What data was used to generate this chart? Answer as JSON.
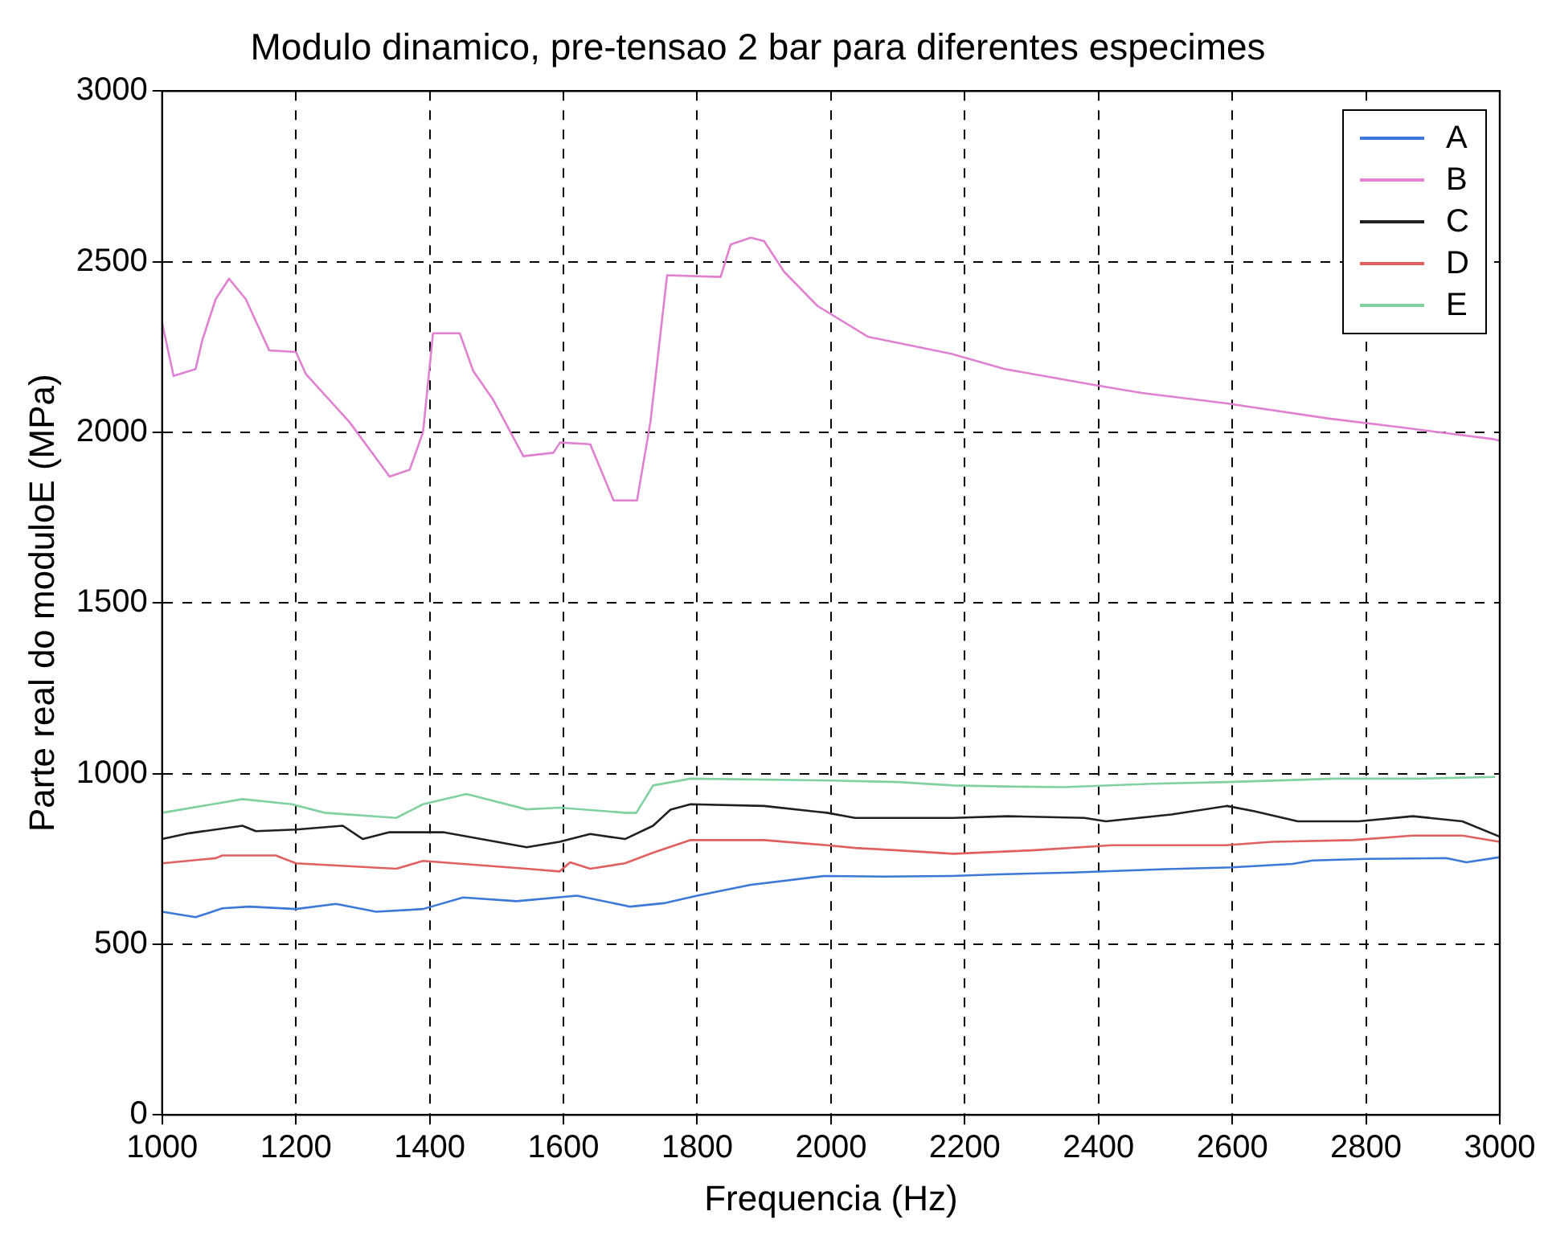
{
  "chart_data": {
    "type": "line",
    "title": "Modulo dinamico, pre-tensao 2 bar para diferentes especimes",
    "xlabel": "Frequencia (Hz)",
    "ylabel": "Parte real do moduloE (MPa)",
    "xlim": [
      1000,
      3000
    ],
    "xticks": [
      1000,
      1200,
      1400,
      1600,
      1800,
      2000,
      2200,
      2400,
      2600,
      2800,
      3000
    ],
    "ylim": [
      0,
      3000
    ],
    "yticks": [
      0,
      500,
      1000,
      1500,
      2000,
      2500,
      3000
    ],
    "grid": true,
    "legend": "top right",
    "marker": "none",
    "line_style": "solid",
    "series": [
      {
        "name": "A",
        "color": "#3c78d8",
        "x": [
          1000,
          1050,
          1090,
          1130,
          1200,
          1260,
          1320,
          1390,
          1450,
          1530,
          1620,
          1700,
          1750,
          1800,
          1880,
          1990,
          2080,
          2180,
          2260,
          2360,
          2500,
          2600,
          2690,
          2720,
          2800,
          2920,
          2950,
          3000
        ],
        "values": [
          595,
          579,
          605,
          610,
          603,
          618,
          595,
          603,
          637,
          626,
          642,
          610,
          620,
          642,
          674,
          700,
          698,
          700,
          705,
          710,
          720,
          725,
          735,
          745,
          750,
          752,
          740,
          755
        ]
      },
      {
        "name": "B",
        "color": "#e080d0",
        "x": [
          1000,
          1017,
          1050,
          1060,
          1080,
          1100,
          1125,
          1160,
          1200,
          1215,
          1280,
          1340,
          1370,
          1390,
          1405,
          1445,
          1465,
          1495,
          1540,
          1585,
          1595,
          1640,
          1675,
          1710,
          1730,
          1755,
          1835,
          1850,
          1880,
          1900,
          1930,
          1980,
          2055,
          2180,
          2260,
          2390,
          2465,
          2590,
          2745,
          2850,
          2990,
          3000
        ],
        "values": [
          2320,
          2165,
          2185,
          2270,
          2390,
          2450,
          2390,
          2240,
          2235,
          2170,
          2030,
          1870,
          1890,
          2000,
          2290,
          2290,
          2180,
          2095,
          1930,
          1940,
          1970,
          1965,
          1800,
          1800,
          2030,
          2460,
          2455,
          2550,
          2570,
          2560,
          2470,
          2370,
          2280,
          2230,
          2185,
          2140,
          2115,
          2085,
          2040,
          2015,
          1980,
          1975
        ]
      },
      {
        "name": "C",
        "color": "#202020",
        "x": [
          1000,
          1040,
          1120,
          1140,
          1200,
          1270,
          1300,
          1340,
          1420,
          1545,
          1594,
          1640,
          1692,
          1734,
          1760,
          1790,
          1900,
          1994,
          2036,
          2183,
          2264,
          2379,
          2411,
          2509,
          2592,
          2632,
          2698,
          2789,
          2870,
          2944,
          3000
        ],
        "values": [
          808,
          825,
          847,
          831,
          836,
          847,
          808,
          828,
          828,
          784,
          800,
          823,
          808,
          847,
          894,
          910,
          905,
          885,
          870,
          870,
          875,
          870,
          860,
          880,
          905,
          890,
          860,
          860,
          875,
          860,
          815
        ]
      },
      {
        "name": "D",
        "color": "#e06060",
        "x": [
          1000,
          1080,
          1090,
          1170,
          1200,
          1350,
          1390,
          1545,
          1594,
          1610,
          1640,
          1692,
          1734,
          1790,
          1900,
          1994,
          2036,
          2100,
          2183,
          2300,
          2420,
          2590,
          2660,
          2780,
          2870,
          2944,
          3000
        ],
        "values": [
          737,
          752,
          760,
          760,
          737,
          721,
          744,
          721,
          713,
          740,
          721,
          737,
          768,
          805,
          805,
          790,
          782,
          775,
          765,
          775,
          790,
          790,
          800,
          805,
          818,
          818,
          800
        ]
      },
      {
        "name": "E",
        "color": "#80d0a0",
        "x": [
          1000,
          1120,
          1194,
          1243,
          1350,
          1390,
          1455,
          1545,
          1594,
          1692,
          1709,
          1734,
          1790,
          1987,
          2100,
          2183,
          2260,
          2347,
          2480,
          2592,
          2755,
          2880,
          2993
        ],
        "values": [
          885,
          925,
          910,
          885,
          870,
          910,
          940,
          895,
          900,
          885,
          885,
          965,
          985,
          980,
          975,
          965,
          962,
          960,
          970,
          975,
          985,
          985,
          990
        ]
      }
    ]
  }
}
